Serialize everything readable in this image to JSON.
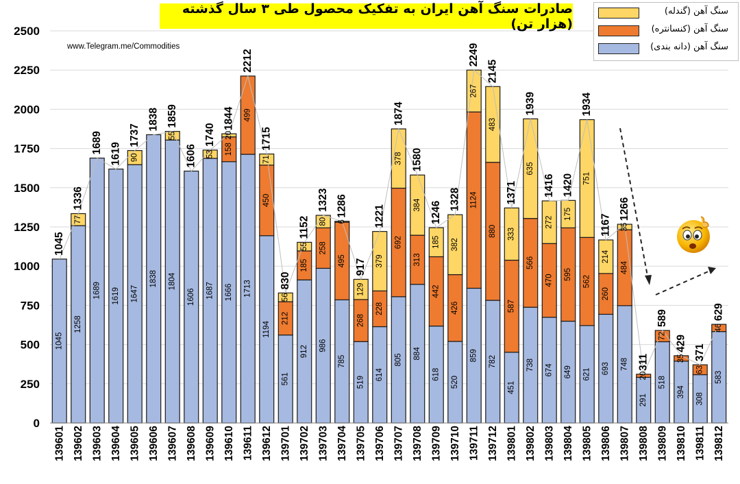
{
  "chart_data": {
    "type": "bar",
    "stacked": true,
    "title": "صادرات سنگ آهن ایران به تفکیک محصول طی ۳ سال گذشته (هزار تن)",
    "watermark": "www.Telegram.me/Commodities",
    "legend_position": "top-right",
    "ylim": [
      0,
      2500
    ],
    "yticks": [
      "0",
      "250",
      "500",
      "750",
      "1000",
      "1250",
      "1500",
      "1750",
      "2000",
      "2250",
      "2500"
    ],
    "categories": [
      "139601",
      "139602",
      "139603",
      "139604",
      "139605",
      "139606",
      "139607",
      "139608",
      "139609",
      "139610",
      "139611",
      "139612",
      "139701",
      "139702",
      "139703",
      "139704",
      "139705",
      "139706",
      "139707",
      "139708",
      "139709",
      "139710",
      "139711",
      "139712",
      "139801",
      "139802",
      "139803",
      "139804",
      "139805",
      "139806",
      "139807",
      "139808",
      "139809",
      "139810",
      "139811",
      "139812"
    ],
    "series": [
      {
        "name": "سنگ آهن (دانه بندی)",
        "color": "#a6b9e0",
        "values": [
          1045,
          1258,
          1689,
          1619,
          1647,
          1838,
          1804,
          1606,
          1687,
          1666,
          1713,
          1194,
          561,
          912,
          986,
          785,
          519,
          614,
          805,
          884,
          618,
          520,
          859,
          782,
          451,
          738,
          674,
          649,
          621,
          693,
          748,
          291,
          518,
          394,
          308,
          583
        ]
      },
      {
        "name": "سنگ آهن (کنسانتره)",
        "color": "#ee7b30",
        "values": [
          0,
          0,
          0,
          0,
          0,
          0,
          0,
          0,
          0,
          158,
          499,
          450,
          212,
          185,
          258,
          495,
          268,
          228,
          692,
          313,
          442,
          426,
          1124,
          880,
          587,
          566,
          470,
          595,
          562,
          260,
          484,
          20,
          72,
          35,
          63,
          46
        ]
      },
      {
        "name": "سنگ آهن (گندله)",
        "color": "#fed665",
        "values": [
          0,
          77,
          0,
          0,
          90,
          0,
          55,
          0,
          53,
          20,
          0,
          71,
          56,
          55,
          80,
          6,
          129,
          379,
          378,
          384,
          185,
          382,
          267,
          483,
          333,
          635,
          272,
          175,
          751,
          214,
          35,
          0,
          0,
          0,
          0,
          0
        ]
      }
    ],
    "totals": [
      1045,
      1336,
      1689,
      1619,
      1737,
      1838,
      1859,
      1606,
      1740,
      1844,
      2212,
      1715,
      830,
      1152,
      1323,
      1286,
      917,
      1221,
      1874,
      1580,
      1246,
      1328,
      2249,
      2145,
      1371,
      1939,
      1416,
      1420,
      1934,
      1167,
      1266,
      311,
      589,
      429,
      371,
      629
    ]
  }
}
